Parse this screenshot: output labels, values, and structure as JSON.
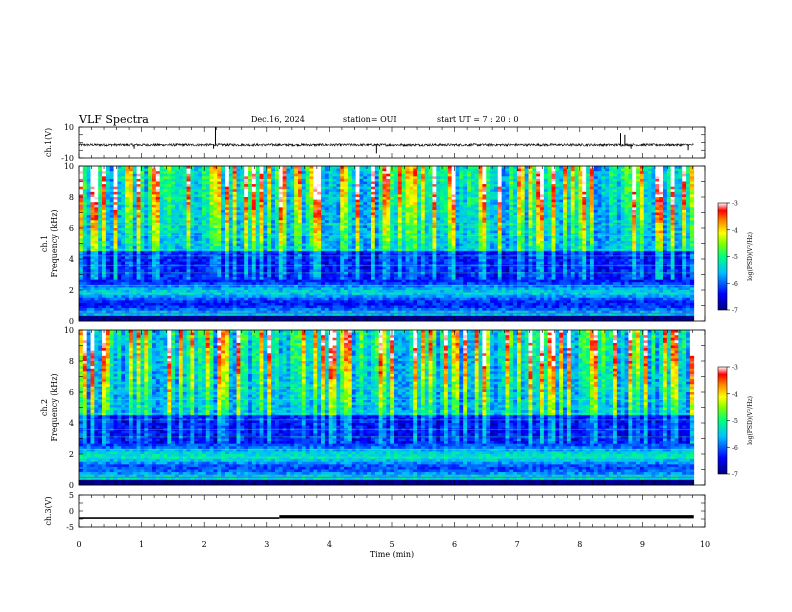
{
  "header": {
    "title": "VLF Spectra",
    "date": "Dec.16, 2024",
    "station": "station= OUI",
    "start": "start  UT =   7 : 20 : 0"
  },
  "chart_data": [
    {
      "type": "line",
      "panel": "ch1-waveform",
      "ylabel": "ch.1(V)",
      "xlim": [
        0,
        10
      ],
      "ylim": [
        -10,
        10
      ],
      "ytick_labels": [
        "10",
        "-10"
      ],
      "baseline": -1.5,
      "spikes": [
        {
          "x": 0.88,
          "y": -4
        },
        {
          "x": 2.18,
          "y": 10
        },
        {
          "x": 2.15,
          "y": -4
        },
        {
          "x": 4.75,
          "y": -7
        },
        {
          "x": 8.65,
          "y": 6
        },
        {
          "x": 8.72,
          "y": 5
        },
        {
          "x": 8.82,
          "y": -4
        },
        {
          "x": 9.73,
          "y": -5
        }
      ],
      "trace_end": 9.82,
      "color": "#000000"
    },
    {
      "type": "heatmap",
      "panel": "ch1-spectrogram",
      "ylabel": "ch.1 Frequency (kHz)",
      "xlim": [
        0,
        10
      ],
      "ylim": [
        0,
        10
      ],
      "ytick_labels": [
        "0",
        "2",
        "4",
        "6",
        "8",
        "10"
      ],
      "colorbar": {
        "label": "log(PSD)(V²/Hz)",
        "range": [
          -7,
          -3
        ],
        "tick_labels": [
          "-3",
          "-4",
          "-5",
          "-6",
          "-7"
        ]
      },
      "data_end_min": 9.82,
      "colormap": [
        "#00008b",
        "#0000ff",
        "#00bfff",
        "#00ff7f",
        "#7fff00",
        "#ffff00",
        "#ff8000",
        "#ff0000",
        "#ffffff"
      ]
    },
    {
      "type": "heatmap",
      "panel": "ch2-spectrogram",
      "ylabel": "ch.2 Frequency (kHz)",
      "xlim": [
        0,
        10
      ],
      "ylim": [
        0,
        10
      ],
      "ytick_labels": [
        "0",
        "2",
        "4",
        "6",
        "8",
        "10"
      ],
      "colorbar": {
        "label": "log(PSD)(V²/Hz)",
        "range": [
          -7,
          -3
        ],
        "tick_labels": [
          "-3",
          "-4",
          "-5",
          "-6",
          "-7"
        ]
      },
      "data_end_min": 9.82
    },
    {
      "type": "line",
      "panel": "ch3-trace",
      "ylabel": "ch.3(V)",
      "xlim": [
        0,
        10
      ],
      "ylim": [
        -5,
        5
      ],
      "ytick_labels": [
        "5",
        "0",
        "-5"
      ],
      "segments": [
        {
          "x": [
            0,
            3.2
          ],
          "y": -2.2
        },
        {
          "x": [
            3.2,
            9.82
          ],
          "y": -1.8
        }
      ],
      "xlabel": "Time  (min)",
      "xtick_labels": [
        "0",
        "1",
        "2",
        "3",
        "4",
        "5",
        "6",
        "7",
        "8",
        "9",
        "10"
      ]
    }
  ]
}
